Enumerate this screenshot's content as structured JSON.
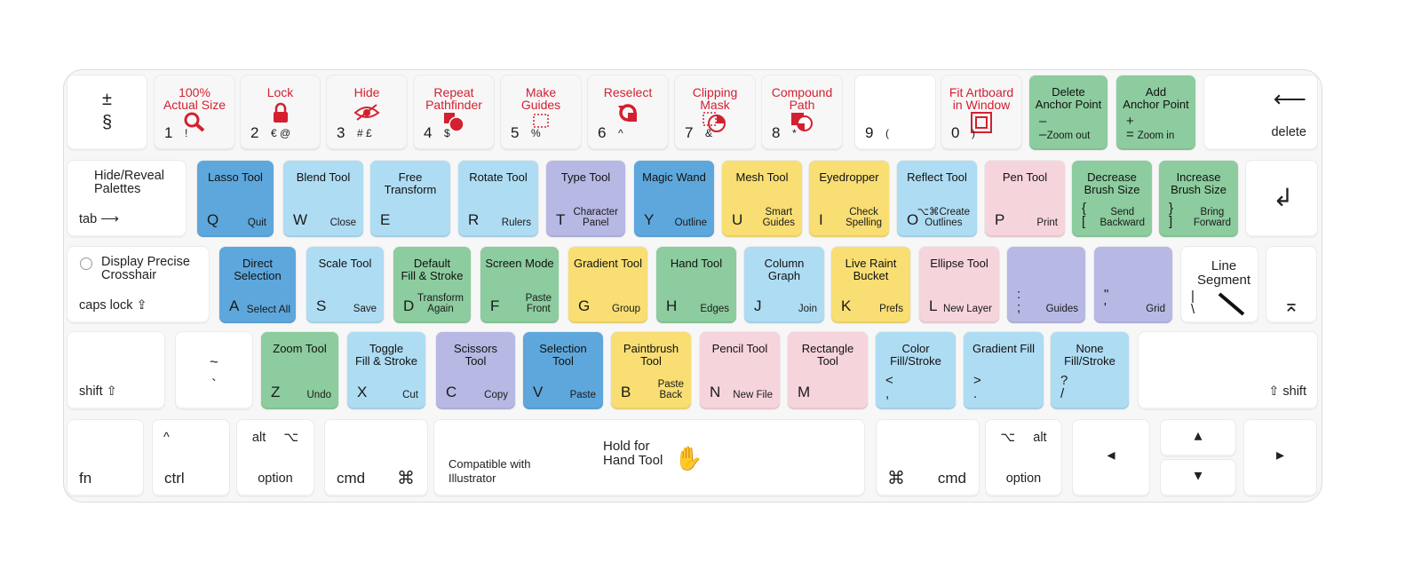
{
  "colors": {
    "blue_dark": "#5ea7dc",
    "blue_light": "#aedcf3",
    "purple": "#b7b8e4",
    "yellow": "#f8de73",
    "green": "#8ccc9e",
    "pink": "#f6d4dc",
    "red_text": "#d32030",
    "white": "#ffffff"
  },
  "row1": [
    {
      "char": "±\n§"
    },
    {
      "fn": "100%\nActual Size",
      "char": "1",
      "alt": "!",
      "icon": "magnifier-icon"
    },
    {
      "fn": "Lock",
      "char": "2",
      "alt": "€  @",
      "icon": "lock-icon"
    },
    {
      "fn": "Hide",
      "char": "3",
      "alt": "#  £",
      "icon": "eye-icon"
    },
    {
      "fn": "Repeat\nPathfinder",
      "char": "4",
      "alt": "$",
      "icon": "pathfinder-icon"
    },
    {
      "fn": "Make\nGuides",
      "char": "5",
      "alt": "%",
      "icon": "guides-icon"
    },
    {
      "fn": "Reselect",
      "char": "6",
      "alt": "^",
      "icon": "reselect-icon"
    },
    {
      "fn": "Clipping\nMask",
      "char": "7",
      "alt": "&",
      "icon": "clipping-icon"
    },
    {
      "fn": "Compound\nPath",
      "char": "8",
      "alt": "*",
      "icon": "compound-icon"
    },
    {
      "char": "9",
      "alt": "("
    },
    {
      "fn": "Fit Artboard\nin Window",
      "char": "0",
      "alt": ")",
      "icon": "artboard-icon"
    },
    {
      "fn": "Delete\nAnchor Point",
      "char": "–\n–",
      "sub": "Zoom out"
    },
    {
      "fn": "Add\nAnchor Point",
      "char": "+\n=",
      "sub": "Zoom in"
    },
    {
      "arrow": "⟵",
      "label": "delete"
    }
  ],
  "row2": [
    {
      "fn": "Hide/Reveal\nPalettes",
      "label": "tab ⟶"
    },
    {
      "fn": "Lasso Tool",
      "char": "Q",
      "sub": "Quit"
    },
    {
      "fn": "Blend Tool",
      "char": "W",
      "sub": "Close"
    },
    {
      "fn": "Free\nTransform",
      "char": "E"
    },
    {
      "fn": "Rotate Tool",
      "char": "R",
      "sub": "Rulers"
    },
    {
      "fn": "Type Tool",
      "char": "T",
      "sub": "Character\nPanel"
    },
    {
      "fn": "Magic Wand",
      "char": "Y",
      "sub": "Outline"
    },
    {
      "fn": "Mesh Tool",
      "char": "U",
      "sub": "Smart\nGuides"
    },
    {
      "fn": "Eyedropper",
      "char": "I",
      "sub": "Check\nSpelling"
    },
    {
      "fn": "Reflect Tool",
      "char": "O",
      "sub": "⌥⌘Create\nOutlines"
    },
    {
      "fn": "Pen Tool",
      "char": "P",
      "sub": "Print"
    },
    {
      "fn": "Decrease\nBrush Size",
      "char": "{\n[",
      "sub": "Send\nBackward"
    },
    {
      "fn": "Increase\nBrush Size",
      "char": "}\n]",
      "sub": "Bring\nForward"
    },
    {
      "arrow": "↲"
    }
  ],
  "row3": [
    {
      "fn": "Display Precise\nCrosshair",
      "label": "caps lock ⇪"
    },
    {
      "fn": "Direct\nSelection",
      "char": "A",
      "sub": "Select All"
    },
    {
      "fn": "Scale Tool",
      "char": "S",
      "sub": "Save"
    },
    {
      "fn": "Default\nFill & Stroke",
      "char": "D",
      "sub": "Transform\nAgain"
    },
    {
      "fn": "Screen Mode",
      "char": "F",
      "sub": "Paste\nFront"
    },
    {
      "fn": "Gradient Tool",
      "char": "G",
      "sub": "Group"
    },
    {
      "fn": "Hand Tool",
      "char": "H",
      "sub": "Edges"
    },
    {
      "fn": "Column\nGraph",
      "char": "J",
      "sub": "Join"
    },
    {
      "fn": "Live Raint\nBucket",
      "char": "K",
      "sub": "Prefs"
    },
    {
      "fn": "Ellipse Tool",
      "char": "L",
      "sub": "New Layer"
    },
    {
      "char": ":\n;",
      "sub": "Guides"
    },
    {
      "char": "\"\n'",
      "sub": "Grid"
    },
    {
      "fn": "Line\nSegment",
      "char": "|\n\\"
    },
    {
      "arrow": "⌅"
    }
  ],
  "row4": [
    {
      "label": "shift ⇧"
    },
    {
      "char": "~\n`"
    },
    {
      "fn": "Zoom Tool",
      "char": "Z",
      "sub": "Undo"
    },
    {
      "fn": "Toggle\nFill & Stroke",
      "char": "X",
      "sub": "Cut"
    },
    {
      "fn": "Scissors\nTool",
      "char": "C",
      "sub": "Copy"
    },
    {
      "fn": "Selection\nTool",
      "char": "V",
      "sub": "Paste"
    },
    {
      "fn": "Paintbrush\nTool",
      "char": "B",
      "sub": "Paste\nBack"
    },
    {
      "fn": "Pencil Tool",
      "char": "N",
      "sub": "New File"
    },
    {
      "fn": "Rectangle\nTool",
      "char": "M"
    },
    {
      "fn": "Color\nFill/Stroke",
      "char": "<\n,"
    },
    {
      "fn": "Gradient Fill",
      "char": ">\n."
    },
    {
      "fn": "None\nFill/Stroke",
      "char": "?\n/"
    },
    {
      "label": "⇧ shift"
    }
  ],
  "row5": [
    {
      "label": "fn"
    },
    {
      "top": "^",
      "label": "ctrl"
    },
    {
      "top": "alt     ⌥",
      "label": "option"
    },
    {
      "label": "cmd",
      "sym": "⌘"
    },
    {
      "fn": "Hold for\nHand Tool",
      "label": "Compatible with\nIllustrator"
    },
    {
      "sym": "⌘",
      "label": "cmd"
    },
    {
      "top": "⌥     alt",
      "label": "option"
    },
    {
      "arrow": "◂"
    },
    {
      "arrow": "▴"
    },
    {
      "arrow": "▾"
    },
    {
      "arrow": "▸"
    }
  ]
}
